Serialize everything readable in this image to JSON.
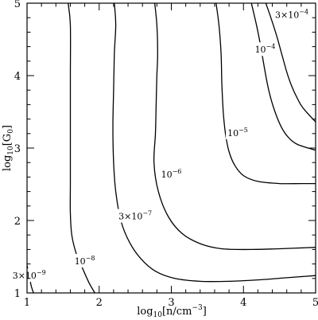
{
  "chart_data": {
    "type": "contour",
    "xlabel": {
      "base": "log",
      "sub": "10",
      "body": "[n/cm",
      "sup": "−3",
      "close": "]"
    },
    "ylabel": {
      "base": "log",
      "sub": "10",
      "body": "[G",
      "sub2": "0",
      "close": "]"
    },
    "xlim": [
      1,
      5
    ],
    "ylim": [
      1,
      5
    ],
    "xticks": [
      1,
      2,
      3,
      4,
      5
    ],
    "yticks": [
      1,
      2,
      3,
      4,
      5
    ],
    "xtick_labels": [
      "1",
      "2",
      "3",
      "4",
      "5"
    ],
    "ytick_labels": [
      "1",
      "2",
      "3",
      "4",
      "5"
    ],
    "minor_xticks": [
      1.2,
      1.4,
      1.6,
      1.8,
      2.2,
      2.4,
      2.6,
      2.8,
      3.2,
      3.4,
      3.6,
      3.8,
      4.2,
      4.4,
      4.6,
      4.8
    ],
    "minor_yticks": [
      1.2,
      1.4,
      1.6,
      1.8,
      2.2,
      2.4,
      2.6,
      2.8,
      3.2,
      3.4,
      3.6,
      3.8,
      4.2,
      4.4,
      4.6,
      4.8
    ],
    "contours": [
      {
        "level": "3×10⁻⁹",
        "label": {
          "mant": "3×10",
          "exp": "−9",
          "x": 1.03,
          "y": 1.24
        },
        "points": [
          [
            1.0,
            1.38
          ],
          [
            1.03,
            1.24
          ],
          [
            1.06,
            1.09
          ],
          [
            1.09,
            1.0
          ]
        ]
      },
      {
        "level": "10⁻⁸",
        "label": {
          "mant": "10",
          "exp": "−8",
          "x": 1.8,
          "y": 1.44
        },
        "points": [
          [
            1.57,
            5.0
          ],
          [
            1.6,
            4.7
          ],
          [
            1.6,
            4.0
          ],
          [
            1.6,
            3.5
          ],
          [
            1.6,
            3.0
          ],
          [
            1.6,
            2.5
          ],
          [
            1.6,
            2.1
          ],
          [
            1.62,
            1.8
          ],
          [
            1.68,
            1.55
          ],
          [
            1.76,
            1.36
          ],
          [
            1.86,
            1.14
          ],
          [
            1.94,
            1.0
          ]
        ]
      },
      {
        "level": "3×10⁻⁷",
        "label": {
          "mant": "3×10",
          "exp": "−7",
          "x": 2.5,
          "y": 2.06
        },
        "points": [
          [
            2.21,
            5.0
          ],
          [
            2.23,
            4.7
          ],
          [
            2.21,
            4.3
          ],
          [
            2.2,
            3.8
          ],
          [
            2.19,
            3.3
          ],
          [
            2.2,
            2.8
          ],
          [
            2.23,
            2.4
          ],
          [
            2.3,
            2.0
          ],
          [
            2.42,
            1.7
          ],
          [
            2.58,
            1.47
          ],
          [
            2.78,
            1.3
          ],
          [
            3.05,
            1.2
          ],
          [
            3.4,
            1.16
          ],
          [
            3.8,
            1.16
          ],
          [
            4.2,
            1.18
          ],
          [
            4.6,
            1.21
          ],
          [
            5.0,
            1.24
          ]
        ]
      },
      {
        "level": "10⁻⁶",
        "label": {
          "mant": "10",
          "exp": "−6",
          "x": 3.0,
          "y": 2.64
        },
        "points": [
          [
            2.77,
            5.0
          ],
          [
            2.8,
            4.7
          ],
          [
            2.81,
            4.3
          ],
          [
            2.8,
            4.0
          ],
          [
            2.79,
            3.6
          ],
          [
            2.78,
            3.2
          ],
          [
            2.76,
            2.8
          ],
          [
            2.82,
            2.4
          ],
          [
            2.96,
            2.05
          ],
          [
            3.15,
            1.82
          ],
          [
            3.4,
            1.68
          ],
          [
            3.7,
            1.61
          ],
          [
            4.1,
            1.6
          ],
          [
            4.5,
            1.61
          ],
          [
            5.0,
            1.63
          ]
        ]
      },
      {
        "level": "10⁻⁵",
        "label": {
          "mant": "10",
          "exp": "−5",
          "x": 3.92,
          "y": 3.21
        },
        "points": [
          [
            3.62,
            5.0
          ],
          [
            3.66,
            4.7
          ],
          [
            3.69,
            4.3
          ],
          [
            3.7,
            3.9
          ],
          [
            3.72,
            3.5
          ],
          [
            3.75,
            3.2
          ],
          [
            3.8,
            2.95
          ],
          [
            3.88,
            2.76
          ],
          [
            4.0,
            2.62
          ],
          [
            4.2,
            2.54
          ],
          [
            4.5,
            2.51
          ],
          [
            4.8,
            2.51
          ],
          [
            5.0,
            2.51
          ]
        ]
      },
      {
        "level": "10⁻⁴",
        "label": {
          "mant": "10",
          "exp": "−4",
          "x": 4.3,
          "y": 4.36
        },
        "points": [
          [
            4.11,
            5.0
          ],
          [
            4.18,
            4.7
          ],
          [
            4.24,
            4.4
          ],
          [
            4.3,
            4.05
          ],
          [
            4.35,
            3.8
          ],
          [
            4.42,
            3.55
          ],
          [
            4.52,
            3.3
          ],
          [
            4.62,
            3.15
          ],
          [
            4.75,
            3.05
          ],
          [
            5.0,
            2.97
          ]
        ]
      },
      {
        "level": "3×10⁻⁴",
        "label": {
          "mant": "3×10",
          "exp": "−4",
          "x": 4.67,
          "y": 4.84
        },
        "points": [
          [
            4.31,
            5.0
          ],
          [
            4.38,
            4.8
          ],
          [
            4.46,
            4.55
          ],
          [
            4.53,
            4.3
          ],
          [
            4.6,
            4.05
          ],
          [
            4.67,
            3.85
          ],
          [
            4.74,
            3.7
          ],
          [
            4.82,
            3.56
          ],
          [
            5.0,
            3.36
          ]
        ]
      }
    ]
  }
}
